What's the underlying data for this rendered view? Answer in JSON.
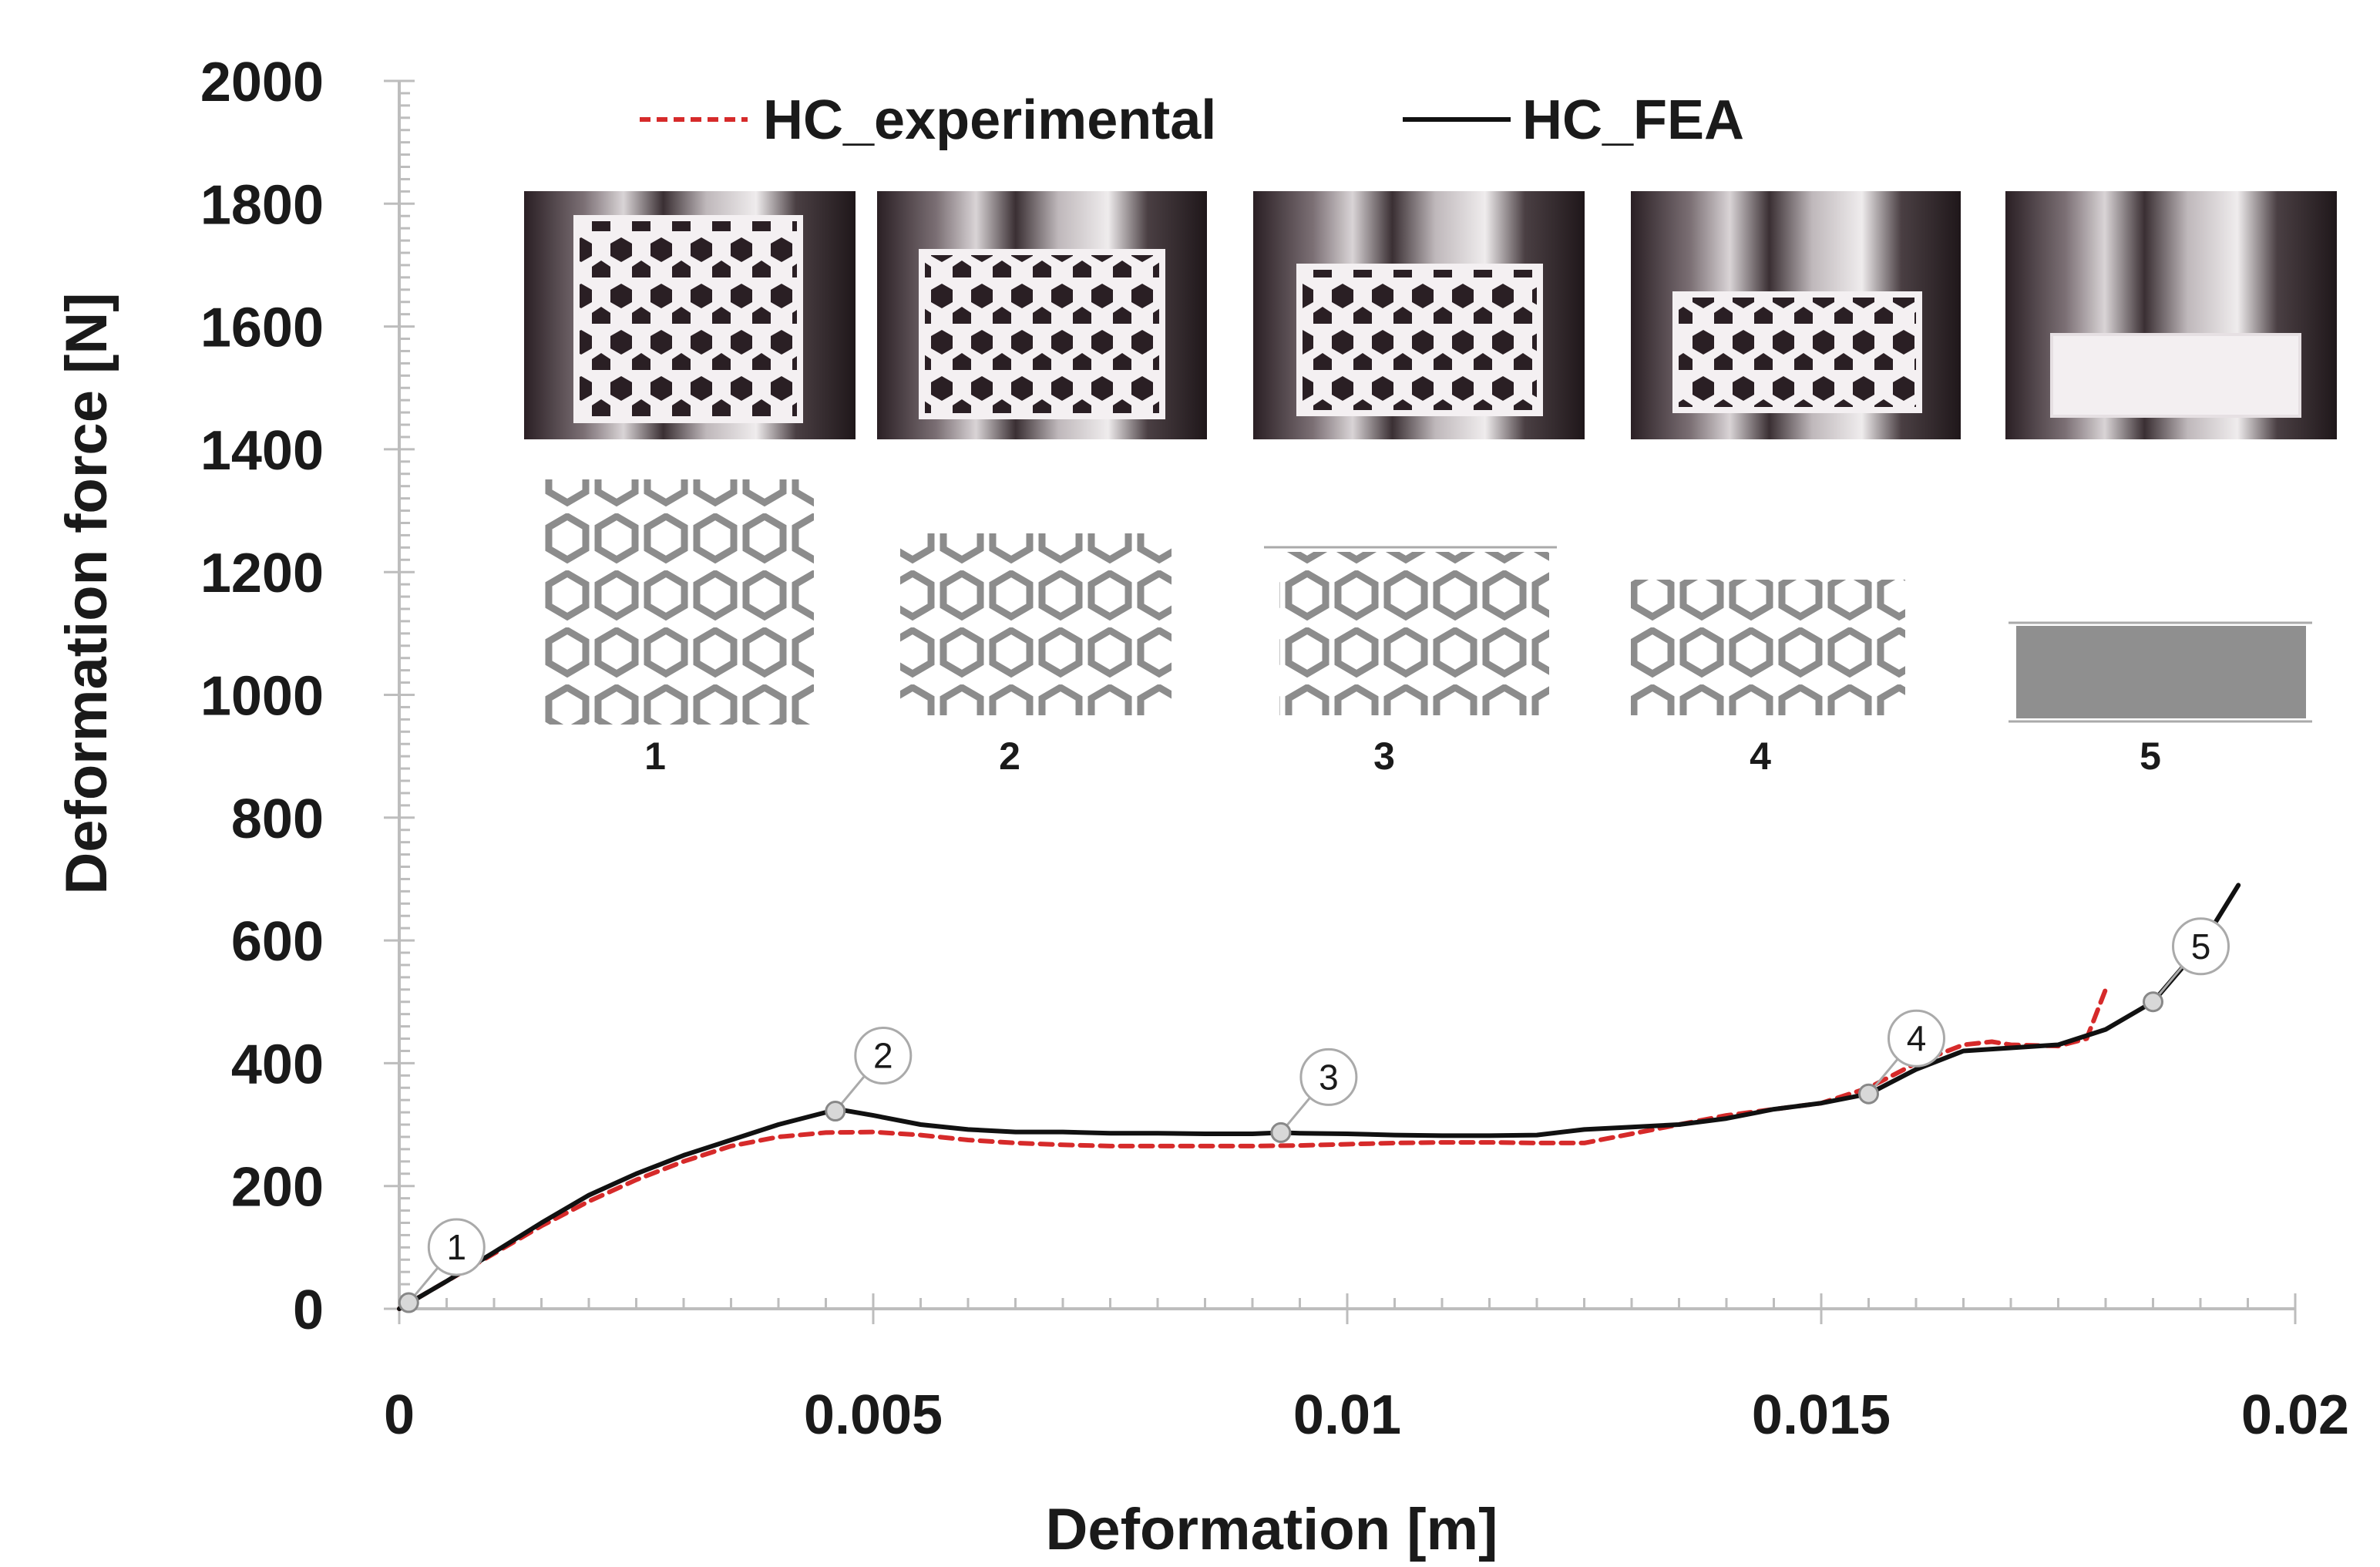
{
  "chart_data": {
    "type": "line",
    "xlabel": "Deformation [m]",
    "ylabel": "Deformation force [N]",
    "xlim": [
      0,
      0.02
    ],
    "ylim": [
      0,
      2000
    ],
    "x_ticks": [
      "0",
      "0.005",
      "0.01",
      "0.015",
      "0.02"
    ],
    "y_ticks": [
      "0",
      "200",
      "400",
      "600",
      "800",
      "1000",
      "1200",
      "1400",
      "1600",
      "1800",
      "2000"
    ],
    "grid": false,
    "legend_position": "top",
    "series": [
      {
        "name": "HC_experimental",
        "style": "dashed",
        "color": "#d62a2a",
        "x": [
          0,
          0.0005,
          0.001,
          0.0015,
          0.002,
          0.0025,
          0.003,
          0.0035,
          0.004,
          0.0045,
          0.005,
          0.0055,
          0.006,
          0.0065,
          0.007,
          0.0075,
          0.008,
          0.0085,
          0.009,
          0.0095,
          0.01,
          0.0105,
          0.011,
          0.0115,
          0.012,
          0.0125,
          0.013,
          0.0135,
          0.014,
          0.0145,
          0.015,
          0.0155,
          0.016,
          0.0165,
          0.0168,
          0.017,
          0.0175,
          0.0178,
          0.018
        ],
        "values": [
          0,
          45,
          90,
          135,
          175,
          210,
          240,
          265,
          280,
          287,
          288,
          283,
          275,
          270,
          267,
          265,
          265,
          265,
          265,
          266,
          268,
          270,
          271,
          271,
          270,
          270,
          285,
          300,
          315,
          325,
          335,
          360,
          400,
          430,
          435,
          430,
          428,
          440,
          520
        ]
      },
      {
        "name": "HC_FEA",
        "style": "solid",
        "color": "#111111",
        "x": [
          0,
          0.0005,
          0.001,
          0.0015,
          0.002,
          0.0025,
          0.003,
          0.0035,
          0.004,
          0.0045,
          0.0047,
          0.005,
          0.0055,
          0.006,
          0.0065,
          0.007,
          0.0075,
          0.008,
          0.0085,
          0.009,
          0.0093,
          0.0095,
          0.01,
          0.0105,
          0.011,
          0.0115,
          0.012,
          0.0125,
          0.013,
          0.0135,
          0.014,
          0.0145,
          0.015,
          0.0155,
          0.016,
          0.0165,
          0.017,
          0.0175,
          0.018,
          0.0185,
          0.019,
          0.0194
        ],
        "values": [
          0,
          45,
          92,
          140,
          185,
          220,
          250,
          275,
          300,
          320,
          323,
          315,
          300,
          292,
          288,
          288,
          286,
          286,
          285,
          285,
          287,
          286,
          285,
          283,
          282,
          282,
          283,
          292,
          296,
          300,
          310,
          325,
          335,
          350,
          390,
          420,
          425,
          430,
          455,
          500,
          590,
          690
        ]
      }
    ],
    "markers": [
      {
        "label": "1",
        "x": 0.0001,
        "y": 10
      },
      {
        "label": "2",
        "x": 0.0046,
        "y": 322
      },
      {
        "label": "3",
        "x": 0.0093,
        "y": 287
      },
      {
        "label": "4",
        "x": 0.0155,
        "y": 350
      },
      {
        "label": "5",
        "x": 0.0185,
        "y": 500
      }
    ],
    "inset_stage_labels": [
      "1",
      "2",
      "3",
      "4",
      "5"
    ]
  }
}
